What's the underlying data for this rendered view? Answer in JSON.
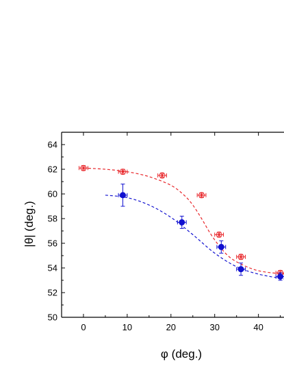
{
  "chart_data": {
    "type": "scatter",
    "title": "",
    "xlabel": "φ (deg.)",
    "ylabel": "|θ| (deg.)",
    "xlim": [
      -5,
      46
    ],
    "ylim": [
      50,
      65
    ],
    "xticks": [
      0,
      10,
      20,
      30,
      40
    ],
    "yticks": [
      50,
      52,
      54,
      56,
      58,
      60,
      62,
      64
    ],
    "grid": false,
    "series": [
      {
        "marker": "asterisk-in-circle",
        "color": "#e8262a",
        "x": [
          0,
          9,
          18,
          27,
          31,
          36,
          45
        ],
        "y": [
          62.1,
          61.8,
          61.5,
          59.9,
          56.7,
          54.9,
          53.6
        ],
        "xerr": [
          1,
          1,
          1,
          1,
          1,
          1,
          1
        ],
        "yerr": [
          0.2,
          0.2,
          0.2,
          0.2,
          0.2,
          0.2,
          0.2
        ]
      },
      {
        "marker": "filled-circle",
        "color": "#1010d0",
        "x": [
          9,
          22.5,
          31.5,
          36,
          45
        ],
        "y": [
          59.9,
          57.7,
          55.7,
          53.9,
          53.3
        ],
        "xerr": [
          1,
          1,
          1,
          1,
          1
        ],
        "yerr": [
          0.9,
          0.5,
          0.5,
          0.5,
          0.3
        ]
      }
    ],
    "fits": [
      {
        "style": "dashed",
        "color": "#e8262a",
        "x": [
          0,
          5,
          10,
          15,
          20,
          23,
          25,
          27,
          29,
          31,
          33,
          35,
          38,
          41,
          46
        ],
        "y": [
          62.1,
          62.0,
          61.8,
          61.4,
          60.7,
          59.9,
          59.1,
          58.0,
          56.8,
          55.8,
          55.0,
          54.5,
          54.0,
          53.7,
          53.5
        ]
      },
      {
        "style": "dashed",
        "color": "#1010d0",
        "x": [
          5,
          10,
          15,
          20,
          25,
          30,
          35,
          40,
          46
        ],
        "y": [
          59.9,
          59.7,
          59.1,
          58.1,
          56.7,
          55.2,
          54.1,
          53.5,
          53.1
        ]
      }
    ]
  }
}
